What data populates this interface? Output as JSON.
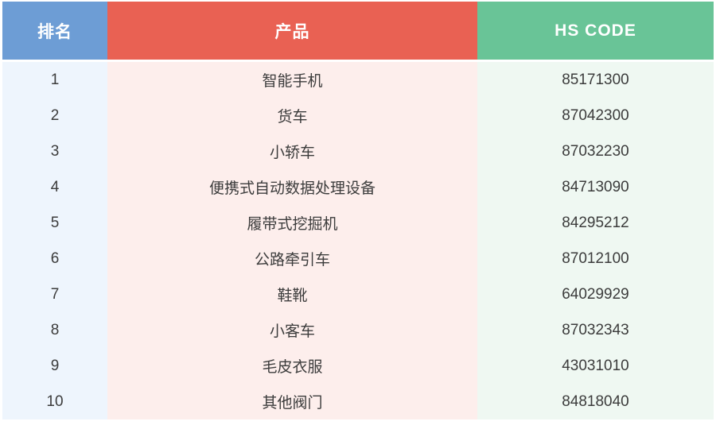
{
  "colors": {
    "header_rank_bg": "#6D9DD5",
    "header_product_bg": "#E96153",
    "header_hscode_bg": "#69C497",
    "body_rank_bg": "#EEF5FD",
    "body_product_bg": "#FDEEEC",
    "body_hscode_bg": "#EFF8F2",
    "header_text": "#FFFFFF",
    "body_text": "#3C3C3C"
  },
  "table": {
    "headers": {
      "rank": "排名",
      "product": "产品",
      "hs_code": "HS CODE"
    },
    "rows": [
      {
        "rank": "1",
        "product": "智能手机",
        "hs_code": "85171300"
      },
      {
        "rank": "2",
        "product": "货车",
        "hs_code": "87042300"
      },
      {
        "rank": "3",
        "product": "小轿车",
        "hs_code": "87032230"
      },
      {
        "rank": "4",
        "product": "便携式自动数据处理设备",
        "hs_code": "84713090"
      },
      {
        "rank": "5",
        "product": "履带式挖掘机",
        "hs_code": "84295212"
      },
      {
        "rank": "6",
        "product": "公路牵引车",
        "hs_code": "87012100"
      },
      {
        "rank": "7",
        "product": "鞋靴",
        "hs_code": "64029929"
      },
      {
        "rank": "8",
        "product": "小客车",
        "hs_code": "87032343"
      },
      {
        "rank": "9",
        "product": "毛皮衣服",
        "hs_code": "43031010"
      },
      {
        "rank": "10",
        "product": "其他阀门",
        "hs_code": "84818040"
      }
    ]
  },
  "chart_data": {
    "type": "table",
    "title": "",
    "columns": [
      "排名",
      "产品",
      "HS CODE"
    ],
    "rows": [
      [
        "1",
        "智能手机",
        "85171300"
      ],
      [
        "2",
        "货车",
        "87042300"
      ],
      [
        "3",
        "小轿车",
        "87032230"
      ],
      [
        "4",
        "便携式自动数据处理设备",
        "84713090"
      ],
      [
        "5",
        "履带式挖掘机",
        "84295212"
      ],
      [
        "6",
        "公路牵引车",
        "87012100"
      ],
      [
        "7",
        "鞋靴",
        "64029929"
      ],
      [
        "8",
        "小客车",
        "87032343"
      ],
      [
        "9",
        "毛皮衣服",
        "43031010"
      ],
      [
        "10",
        "其他阀门",
        "84818040"
      ]
    ]
  }
}
